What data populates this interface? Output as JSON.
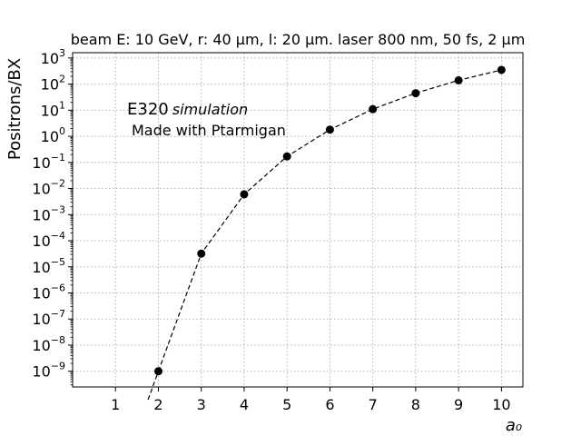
{
  "chart_data": {
    "type": "line",
    "title": "beam E: 10 GeV, r: 40 μm, l: 20 μm. laser 800 nm, 50 fs, 2 μm",
    "xlabel": "a₀",
    "ylabel": "Positrons/BX",
    "xlim": [
      0.0,
      10.5
    ],
    "ylim": [
      2.5e-10,
      1600.0
    ],
    "yscale": "log",
    "x_ticks": [
      1,
      2,
      3,
      4,
      5,
      6,
      7,
      8,
      9,
      10
    ],
    "y_tick_exponents": [
      -9,
      -8,
      -7,
      -6,
      -5,
      -4,
      -3,
      -2,
      -1,
      0,
      1,
      2,
      3
    ],
    "grid": true,
    "line_style": "dashed",
    "marker": "circle",
    "series_color": "#000000",
    "series": [
      {
        "x": [
          2,
          3,
          4,
          5,
          6,
          7,
          8,
          9,
          10
        ],
        "values": [
          1e-09,
          3.2e-05,
          0.006,
          0.17,
          1.8,
          11,
          45,
          140,
          350
        ]
      }
    ],
    "annotations": {
      "line1_main": "E320",
      "line1_italic": "simulation",
      "line2": "Made with Ptarmigan"
    }
  }
}
